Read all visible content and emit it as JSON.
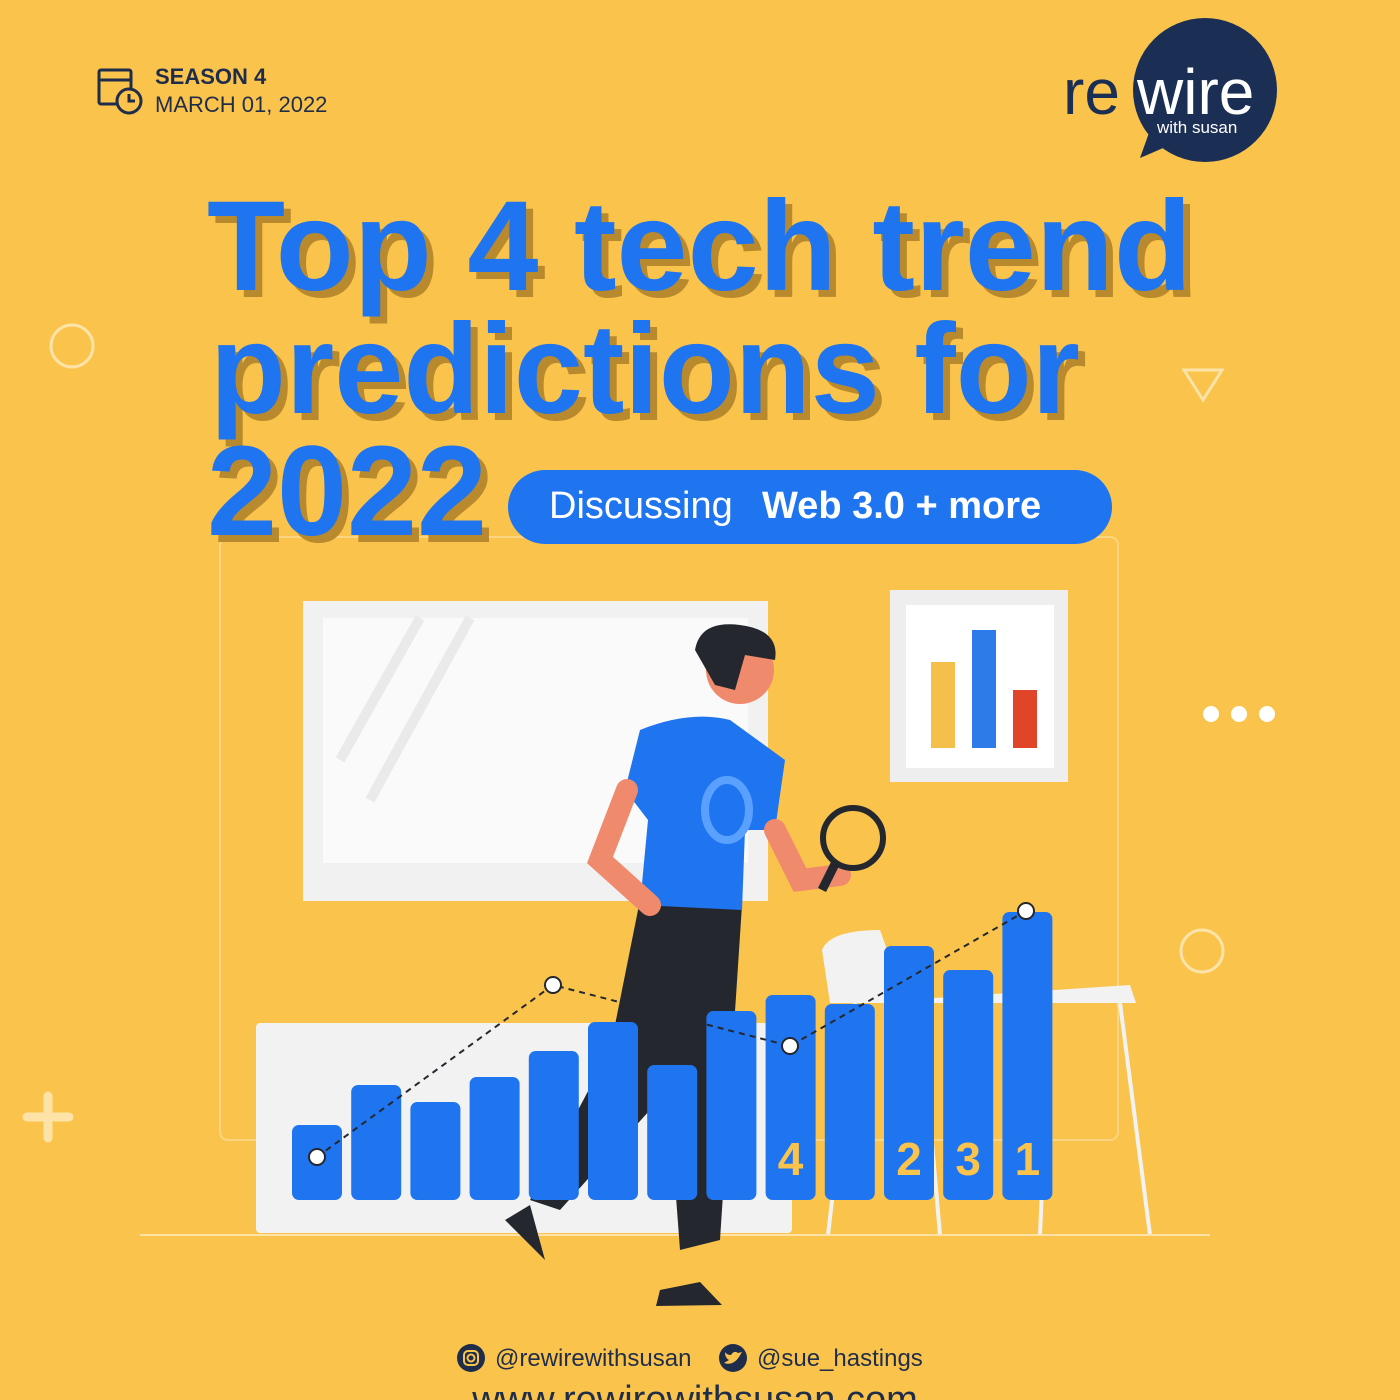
{
  "header": {
    "season": "SEASON 4",
    "date": "MARCH 01, 2022"
  },
  "logo": {
    "prefix": "re",
    "emphasis": "wire",
    "tagline": "with susan"
  },
  "title": {
    "lines": [
      "Top 4 tech trend",
      "predictions for",
      "2022"
    ]
  },
  "badge": {
    "lead": "Discussing",
    "highlight": "Web 3.0 + more"
  },
  "illustration": {
    "bar_labels": [
      "4",
      "2",
      "3",
      "1"
    ]
  },
  "footer": {
    "instagram": "@rewirewithsusan",
    "twitter": "@sue_hastings",
    "website": "www.rewirewithsusan.com"
  }
}
